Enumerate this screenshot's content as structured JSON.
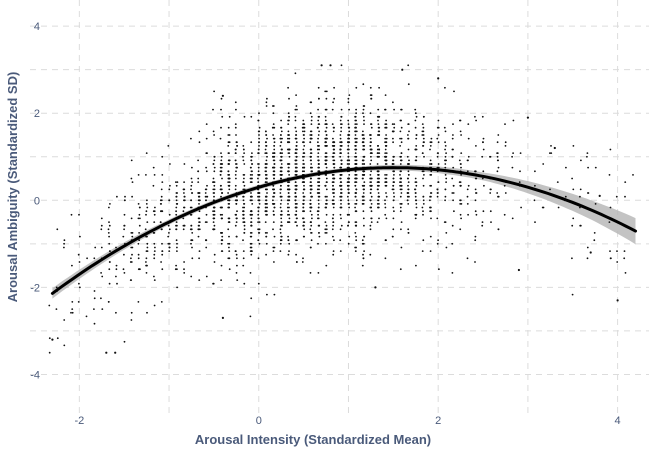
{
  "chart_data": {
    "type": "scatter",
    "xlabel": "Arousal Intensity (Standardized Mean)",
    "ylabel": "Arousal Ambiguity (Standardized SD)",
    "xlim": [
      -2.55,
      4.35
    ],
    "ylim": [
      -5.0,
      4.6
    ],
    "x_ticks": [
      "-2",
      "0",
      "2",
      "4"
    ],
    "x_tick_values": [
      -2,
      0,
      2,
      4
    ],
    "y_ticks": [
      "4",
      "2",
      "0",
      "-2",
      "-4"
    ],
    "y_tick_values": [
      4,
      2,
      0,
      -2,
      -4
    ],
    "grid": "dashed",
    "legend": "none",
    "point_color": "#111111",
    "fit_line_color": "#000000",
    "confidence_band_color": "#b9b9b9",
    "fit_model": {
      "form": "quadratic",
      "intercept": 0.3,
      "linear": 0.6,
      "quadratic": -0.2,
      "x_range": [
        -2.3,
        4.2
      ]
    },
    "confidence_band_halfwidth": [
      {
        "x": -2.3,
        "y": 0.12
      },
      {
        "x": -1.0,
        "y": 0.06
      },
      {
        "x": 1.0,
        "y": 0.05
      },
      {
        "x": 2.5,
        "y": 0.09
      },
      {
        "x": 3.2,
        "y": 0.16
      },
      {
        "x": 3.7,
        "y": 0.22
      },
      {
        "x": 4.2,
        "y": 0.3
      }
    ],
    "point_cloud": {
      "n_points": 2600,
      "x_range": [
        -2.35,
        4.15
      ],
      "x_concentration": [
        -1.5,
        2.6
      ],
      "residual_sd": 0.8
    },
    "outlier_points": [
      {
        "x": 0.7,
        "y": 3.1
      },
      {
        "x": 0.8,
        "y": 3.1
      },
      {
        "x": 1.6,
        "y": 3.0
      },
      {
        "x": 2.0,
        "y": 2.8
      },
      {
        "x": -2.3,
        "y": -3.2
      },
      {
        "x": -1.7,
        "y": -3.5
      },
      {
        "x": -1.6,
        "y": -3.5
      },
      {
        "x": 1.3,
        "y": -2.0
      },
      {
        "x": 3.7,
        "y": -1.2
      },
      {
        "x": 4.0,
        "y": -2.3
      },
      {
        "x": 2.9,
        "y": -1.6
      },
      {
        "x": 3.8,
        "y": 0.1
      },
      {
        "x": 3.3,
        "y": 1.2
      },
      {
        "x": 3.0,
        "y": 1.9
      },
      {
        "x": -0.4,
        "y": -2.7
      },
      {
        "x": -0.4,
        "y": 2.4
      }
    ]
  }
}
